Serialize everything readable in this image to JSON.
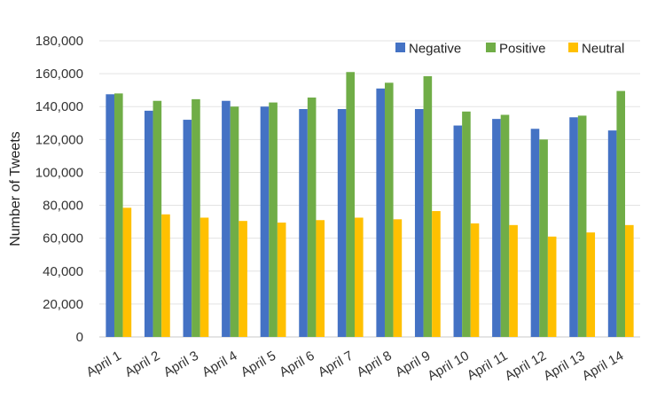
{
  "chart_data": {
    "type": "bar",
    "title": "",
    "xlabel": "",
    "ylabel": "Number of Tweets",
    "ylim": [
      0,
      180000
    ],
    "yticks": [
      0,
      20000,
      40000,
      60000,
      80000,
      100000,
      120000,
      140000,
      160000,
      180000
    ],
    "ytick_labels": [
      "0",
      "20,000",
      "40,000",
      "60,000",
      "80,000",
      "100,000",
      "120,000",
      "140,000",
      "160,000",
      "180,000"
    ],
    "grid": "horizontal",
    "legend_position": "top-right",
    "categories": [
      "April 1",
      "April 2",
      "April 3",
      "April 4",
      "April 5",
      "April 6",
      "April 7",
      "April 8",
      "April 9",
      "April 10",
      "April 11",
      "April 12",
      "April 13",
      "April 14"
    ],
    "series": [
      {
        "name": "Negative",
        "color": "#4472C4",
        "values": [
          147500,
          137500,
          132000,
          143500,
          140000,
          138500,
          138500,
          151000,
          138500,
          128500,
          132500,
          126500,
          133500,
          125500
        ]
      },
      {
        "name": "Positive",
        "color": "#70AD47",
        "values": [
          148000,
          143500,
          144500,
          140000,
          142500,
          145500,
          161000,
          154500,
          158500,
          137000,
          135000,
          120000,
          134500,
          149500
        ]
      },
      {
        "name": "Neutral",
        "color": "#FFC000",
        "values": [
          78500,
          74500,
          72500,
          70500,
          69500,
          71000,
          72500,
          71500,
          76500,
          69000,
          68000,
          61000,
          63500,
          68000
        ]
      }
    ]
  }
}
